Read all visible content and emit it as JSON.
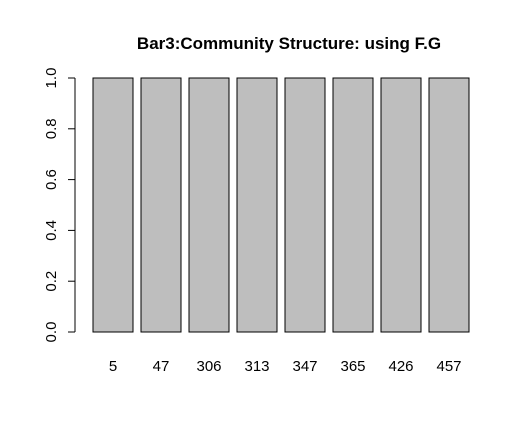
{
  "chart_data": {
    "type": "bar",
    "title": "Bar3:Community Structure: using F.G",
    "xlabel": "",
    "ylabel": "",
    "categories": [
      "5",
      "47",
      "306",
      "313",
      "347",
      "365",
      "426",
      "457"
    ],
    "values": [
      1,
      1,
      1,
      1,
      1,
      1,
      1,
      1
    ],
    "ylim": [
      0,
      1
    ],
    "yticks": [
      "0.0",
      "0.2",
      "0.4",
      "0.6",
      "0.8",
      "1.0"
    ],
    "grid": false,
    "legend": "none",
    "colors": {
      "bar_fill": "#bebebe",
      "bar_stroke": "#000000",
      "axis": "#000000",
      "background": "#ffffff"
    }
  }
}
